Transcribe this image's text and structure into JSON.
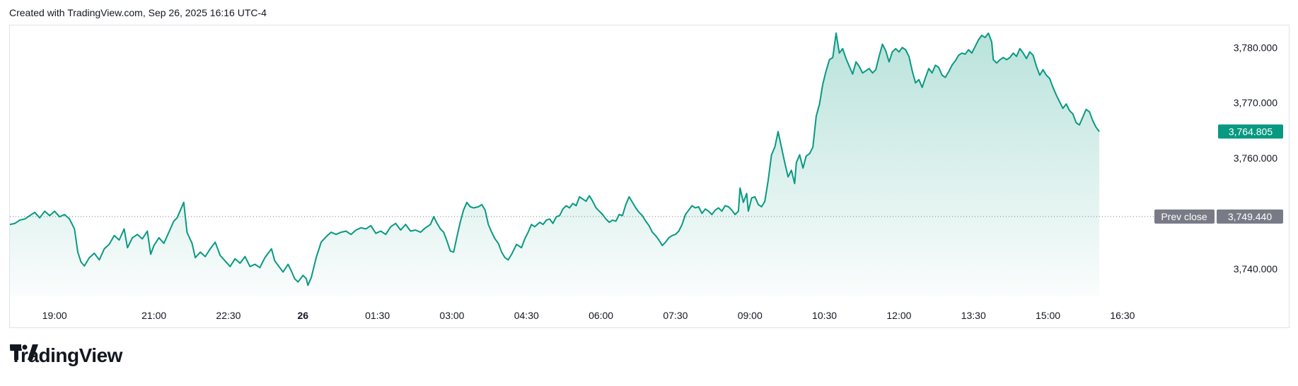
{
  "header": {
    "text": "Created with TradingView.com, Sep 26, 2025 16:16 UTC-4"
  },
  "brand": {
    "name": "TradingView",
    "logo_icon": "tradingview-logo-icon"
  },
  "colors": {
    "line": "#089981",
    "fill": "#089981",
    "prev_close": "#787b86",
    "grid_border": "#e0e3eb"
  },
  "chart_data": {
    "type": "area",
    "x_ticks": [
      {
        "label": "19:00",
        "t": 0
      },
      {
        "label": "21:00",
        "t": 120
      },
      {
        "label": "22:30",
        "t": 210
      },
      {
        "label": "26",
        "t": 300,
        "bold": true
      },
      {
        "label": "01:30",
        "t": 390
      },
      {
        "label": "03:00",
        "t": 480
      },
      {
        "label": "04:30",
        "t": 570
      },
      {
        "label": "06:00",
        "t": 660
      },
      {
        "label": "07:30",
        "t": 750
      },
      {
        "label": "09:00",
        "t": 840
      },
      {
        "label": "10:30",
        "t": 930
      },
      {
        "label": "12:00",
        "t": 1020
      },
      {
        "label": "13:30",
        "t": 1110
      },
      {
        "label": "15:00",
        "t": 1200
      },
      {
        "label": "16:30",
        "t": 1290
      }
    ],
    "y_ticks": [
      3740,
      3760,
      3770,
      3780
    ],
    "y_tick_labels": [
      "3,740.000",
      "3,760.000",
      "3,770.000",
      "3,780.000"
    ],
    "ylim": [
      3735,
      3784
    ],
    "xlim": [
      -54,
      1320
    ],
    "prev_close": {
      "label": "Prev close",
      "value": 3749.44,
      "value_label": "3,749.440"
    },
    "last": {
      "value": 3764.805,
      "value_label": "3,764.805"
    },
    "points": [
      [
        -54,
        3748.0
      ],
      [
        -48,
        3748.2
      ],
      [
        -42,
        3748.8
      ],
      [
        -36,
        3749.0
      ],
      [
        -30,
        3749.6
      ],
      [
        -24,
        3750.2
      ],
      [
        -18,
        3749.2
      ],
      [
        -12,
        3750.4
      ],
      [
        -6,
        3749.6
      ],
      [
        0,
        3750.4
      ],
      [
        6,
        3749.4
      ],
      [
        12,
        3749.8
      ],
      [
        18,
        3749.0
      ],
      [
        24,
        3747.2
      ],
      [
        28,
        3743.0
      ],
      [
        32,
        3741.2
      ],
      [
        36,
        3740.5
      ],
      [
        42,
        3742.0
      ],
      [
        48,
        3742.8
      ],
      [
        54,
        3741.6
      ],
      [
        60,
        3743.6
      ],
      [
        66,
        3744.4
      ],
      [
        72,
        3746.0
      ],
      [
        78,
        3745.2
      ],
      [
        84,
        3747.2
      ],
      [
        88,
        3743.8
      ],
      [
        94,
        3745.6
      ],
      [
        100,
        3746.2
      ],
      [
        106,
        3745.4
      ],
      [
        112,
        3746.8
      ],
      [
        116,
        3742.6
      ],
      [
        120,
        3744.2
      ],
      [
        126,
        3745.6
      ],
      [
        132,
        3744.6
      ],
      [
        138,
        3746.6
      ],
      [
        144,
        3748.6
      ],
      [
        148,
        3749.2
      ],
      [
        152,
        3750.6
      ],
      [
        156,
        3752.0
      ],
      [
        160,
        3746.6
      ],
      [
        166,
        3744.6
      ],
      [
        170,
        3742.0
      ],
      [
        176,
        3743.0
      ],
      [
        182,
        3742.2
      ],
      [
        188,
        3743.6
      ],
      [
        194,
        3744.8
      ],
      [
        200,
        3742.4
      ],
      [
        206,
        3741.4
      ],
      [
        212,
        3740.4
      ],
      [
        218,
        3741.8
      ],
      [
        224,
        3741.0
      ],
      [
        230,
        3742.2
      ],
      [
        236,
        3740.4
      ],
      [
        242,
        3740.8
      ],
      [
        248,
        3740.2
      ],
      [
        254,
        3742.0
      ],
      [
        258,
        3742.8
      ],
      [
        262,
        3743.6
      ],
      [
        266,
        3741.4
      ],
      [
        270,
        3740.6
      ],
      [
        276,
        3739.4
      ],
      [
        282,
        3740.8
      ],
      [
        286,
        3739.6
      ],
      [
        290,
        3738.2
      ],
      [
        294,
        3737.6
      ],
      [
        300,
        3738.8
      ],
      [
        304,
        3738.2
      ],
      [
        306,
        3737.0
      ],
      [
        310,
        3738.4
      ],
      [
        316,
        3742.0
      ],
      [
        322,
        3744.8
      ],
      [
        328,
        3745.8
      ],
      [
        334,
        3746.6
      ],
      [
        340,
        3746.2
      ],
      [
        346,
        3746.6
      ],
      [
        352,
        3746.8
      ],
      [
        358,
        3746.2
      ],
      [
        364,
        3747.0
      ],
      [
        370,
        3747.4
      ],
      [
        376,
        3747.2
      ],
      [
        382,
        3747.8
      ],
      [
        388,
        3746.4
      ],
      [
        394,
        3746.8
      ],
      [
        400,
        3746.2
      ],
      [
        406,
        3747.6
      ],
      [
        412,
        3748.2
      ],
      [
        418,
        3747.0
      ],
      [
        424,
        3748.0
      ],
      [
        430,
        3746.8
      ],
      [
        436,
        3747.0
      ],
      [
        442,
        3746.6
      ],
      [
        448,
        3747.4
      ],
      [
        454,
        3748.0
      ],
      [
        458,
        3749.4
      ],
      [
        462,
        3748.2
      ],
      [
        466,
        3747.2
      ],
      [
        470,
        3746.6
      ],
      [
        474,
        3745.0
      ],
      [
        478,
        3743.2
      ],
      [
        482,
        3743.0
      ],
      [
        486,
        3745.8
      ],
      [
        490,
        3748.4
      ],
      [
        494,
        3750.6
      ],
      [
        498,
        3752.0
      ],
      [
        502,
        3751.2
      ],
      [
        506,
        3751.0
      ],
      [
        512,
        3751.2
      ],
      [
        516,
        3751.6
      ],
      [
        520,
        3750.6
      ],
      [
        524,
        3748.0
      ],
      [
        528,
        3746.6
      ],
      [
        532,
        3745.4
      ],
      [
        536,
        3744.6
      ],
      [
        540,
        3743.0
      ],
      [
        544,
        3742.0
      ],
      [
        548,
        3741.6
      ],
      [
        552,
        3742.6
      ],
      [
        558,
        3744.4
      ],
      [
        564,
        3743.8
      ],
      [
        568,
        3745.4
      ],
      [
        572,
        3746.6
      ],
      [
        576,
        3748.0
      ],
      [
        580,
        3747.6
      ],
      [
        586,
        3748.4
      ],
      [
        590,
        3748.0
      ],
      [
        594,
        3748.8
      ],
      [
        598,
        3749.0
      ],
      [
        602,
        3748.2
      ],
      [
        606,
        3749.4
      ],
      [
        610,
        3749.6
      ],
      [
        614,
        3750.8
      ],
      [
        618,
        3751.4
      ],
      [
        622,
        3751.0
      ],
      [
        626,
        3751.8
      ],
      [
        630,
        3751.4
      ],
      [
        634,
        3753.0
      ],
      [
        638,
        3752.6
      ],
      [
        642,
        3752.2
      ],
      [
        646,
        3753.2
      ],
      [
        650,
        3752.2
      ],
      [
        654,
        3751.0
      ],
      [
        658,
        3750.4
      ],
      [
        662,
        3749.8
      ],
      [
        666,
        3749.0
      ],
      [
        670,
        3748.4
      ],
      [
        674,
        3748.8
      ],
      [
        678,
        3748.6
      ],
      [
        682,
        3749.8
      ],
      [
        686,
        3749.6
      ],
      [
        690,
        3751.6
      ],
      [
        694,
        3753.0
      ],
      [
        698,
        3752.0
      ],
      [
        702,
        3751.0
      ],
      [
        706,
        3750.2
      ],
      [
        710,
        3749.6
      ],
      [
        714,
        3748.6
      ],
      [
        718,
        3747.8
      ],
      [
        722,
        3746.6
      ],
      [
        726,
        3746.0
      ],
      [
        730,
        3745.2
      ],
      [
        734,
        3744.2
      ],
      [
        738,
        3744.8
      ],
      [
        742,
        3745.6
      ],
      [
        746,
        3746.0
      ],
      [
        750,
        3746.2
      ],
      [
        754,
        3746.8
      ],
      [
        758,
        3748.0
      ],
      [
        762,
        3749.8
      ],
      [
        766,
        3750.6
      ],
      [
        770,
        3751.4
      ],
      [
        774,
        3751.0
      ],
      [
        778,
        3751.2
      ],
      [
        782,
        3750.0
      ],
      [
        786,
        3750.8
      ],
      [
        790,
        3750.4
      ],
      [
        794,
        3749.8
      ],
      [
        798,
        3750.6
      ],
      [
        802,
        3751.0
      ],
      [
        806,
        3750.4
      ],
      [
        810,
        3751.4
      ],
      [
        814,
        3751.2
      ],
      [
        818,
        3750.6
      ],
      [
        822,
        3749.8
      ],
      [
        826,
        3750.4
      ],
      [
        828,
        3754.6
      ],
      [
        832,
        3752.0
      ],
      [
        836,
        3753.6
      ],
      [
        838,
        3750.4
      ],
      [
        842,
        3752.8
      ],
      [
        846,
        3753.0
      ],
      [
        850,
        3751.6
      ],
      [
        854,
        3751.2
      ],
      [
        858,
        3752.2
      ],
      [
        862,
        3756.0
      ],
      [
        866,
        3760.6
      ],
      [
        870,
        3762.0
      ],
      [
        874,
        3764.8
      ],
      [
        878,
        3762.0
      ],
      [
        882,
        3759.2
      ],
      [
        886,
        3756.6
      ],
      [
        890,
        3757.8
      ],
      [
        894,
        3755.4
      ],
      [
        896,
        3759.2
      ],
      [
        900,
        3760.6
      ],
      [
        904,
        3758.2
      ],
      [
        908,
        3760.4
      ],
      [
        912,
        3760.8
      ],
      [
        916,
        3762.0
      ],
      [
        920,
        3767.6
      ],
      [
        924,
        3769.8
      ],
      [
        928,
        3773.4
      ],
      [
        932,
        3775.8
      ],
      [
        936,
        3777.8
      ],
      [
        940,
        3778.2
      ],
      [
        944,
        3782.6
      ],
      [
        948,
        3779.0
      ],
      [
        952,
        3779.8
      ],
      [
        956,
        3778.0
      ],
      [
        960,
        3776.6
      ],
      [
        964,
        3775.2
      ],
      [
        968,
        3777.4
      ],
      [
        972,
        3776.6
      ],
      [
        976,
        3775.4
      ],
      [
        980,
        3775.8
      ],
      [
        984,
        3776.2
      ],
      [
        988,
        3775.4
      ],
      [
        992,
        3776.0
      ],
      [
        996,
        3778.4
      ],
      [
        1000,
        3780.6
      ],
      [
        1004,
        3779.4
      ],
      [
        1008,
        3777.4
      ],
      [
        1012,
        3779.2
      ],
      [
        1016,
        3779.8
      ],
      [
        1020,
        3779.2
      ],
      [
        1024,
        3780.0
      ],
      [
        1028,
        3779.6
      ],
      [
        1032,
        3778.4
      ],
      [
        1036,
        3775.8
      ],
      [
        1040,
        3773.6
      ],
      [
        1044,
        3774.2
      ],
      [
        1048,
        3772.8
      ],
      [
        1052,
        3774.6
      ],
      [
        1056,
        3776.2
      ],
      [
        1060,
        3775.4
      ],
      [
        1064,
        3776.8
      ],
      [
        1068,
        3776.4
      ],
      [
        1072,
        3775.0
      ],
      [
        1076,
        3774.6
      ],
      [
        1080,
        3775.6
      ],
      [
        1084,
        3776.8
      ],
      [
        1088,
        3777.6
      ],
      [
        1092,
        3778.6
      ],
      [
        1096,
        3779.0
      ],
      [
        1100,
        3778.8
      ],
      [
        1104,
        3779.6
      ],
      [
        1108,
        3779.0
      ],
      [
        1112,
        3780.2
      ],
      [
        1116,
        3781.4
      ],
      [
        1120,
        3782.2
      ],
      [
        1124,
        3781.8
      ],
      [
        1128,
        3782.6
      ],
      [
        1132,
        3781.0
      ],
      [
        1134,
        3777.8
      ],
      [
        1138,
        3777.2
      ],
      [
        1142,
        3777.8
      ],
      [
        1146,
        3778.2
      ],
      [
        1150,
        3777.8
      ],
      [
        1154,
        3778.2
      ],
      [
        1158,
        3779.0
      ],
      [
        1162,
        3778.4
      ],
      [
        1166,
        3779.8
      ],
      [
        1170,
        3779.0
      ],
      [
        1174,
        3778.0
      ],
      [
        1178,
        3779.2
      ],
      [
        1182,
        3778.6
      ],
      [
        1186,
        3776.6
      ],
      [
        1190,
        3775.0
      ],
      [
        1194,
        3776.0
      ],
      [
        1198,
        3775.0
      ],
      [
        1202,
        3774.4
      ],
      [
        1206,
        3772.8
      ],
      [
        1210,
        3771.4
      ],
      [
        1214,
        3770.2
      ],
      [
        1218,
        3769.0
      ],
      [
        1222,
        3769.8
      ],
      [
        1226,
        3768.6
      ],
      [
        1230,
        3768.0
      ],
      [
        1234,
        3766.4
      ],
      [
        1238,
        3766.0
      ],
      [
        1242,
        3767.4
      ],
      [
        1246,
        3768.8
      ],
      [
        1250,
        3768.4
      ],
      [
        1254,
        3766.8
      ],
      [
        1258,
        3765.6
      ],
      [
        1262,
        3764.8
      ]
    ]
  }
}
